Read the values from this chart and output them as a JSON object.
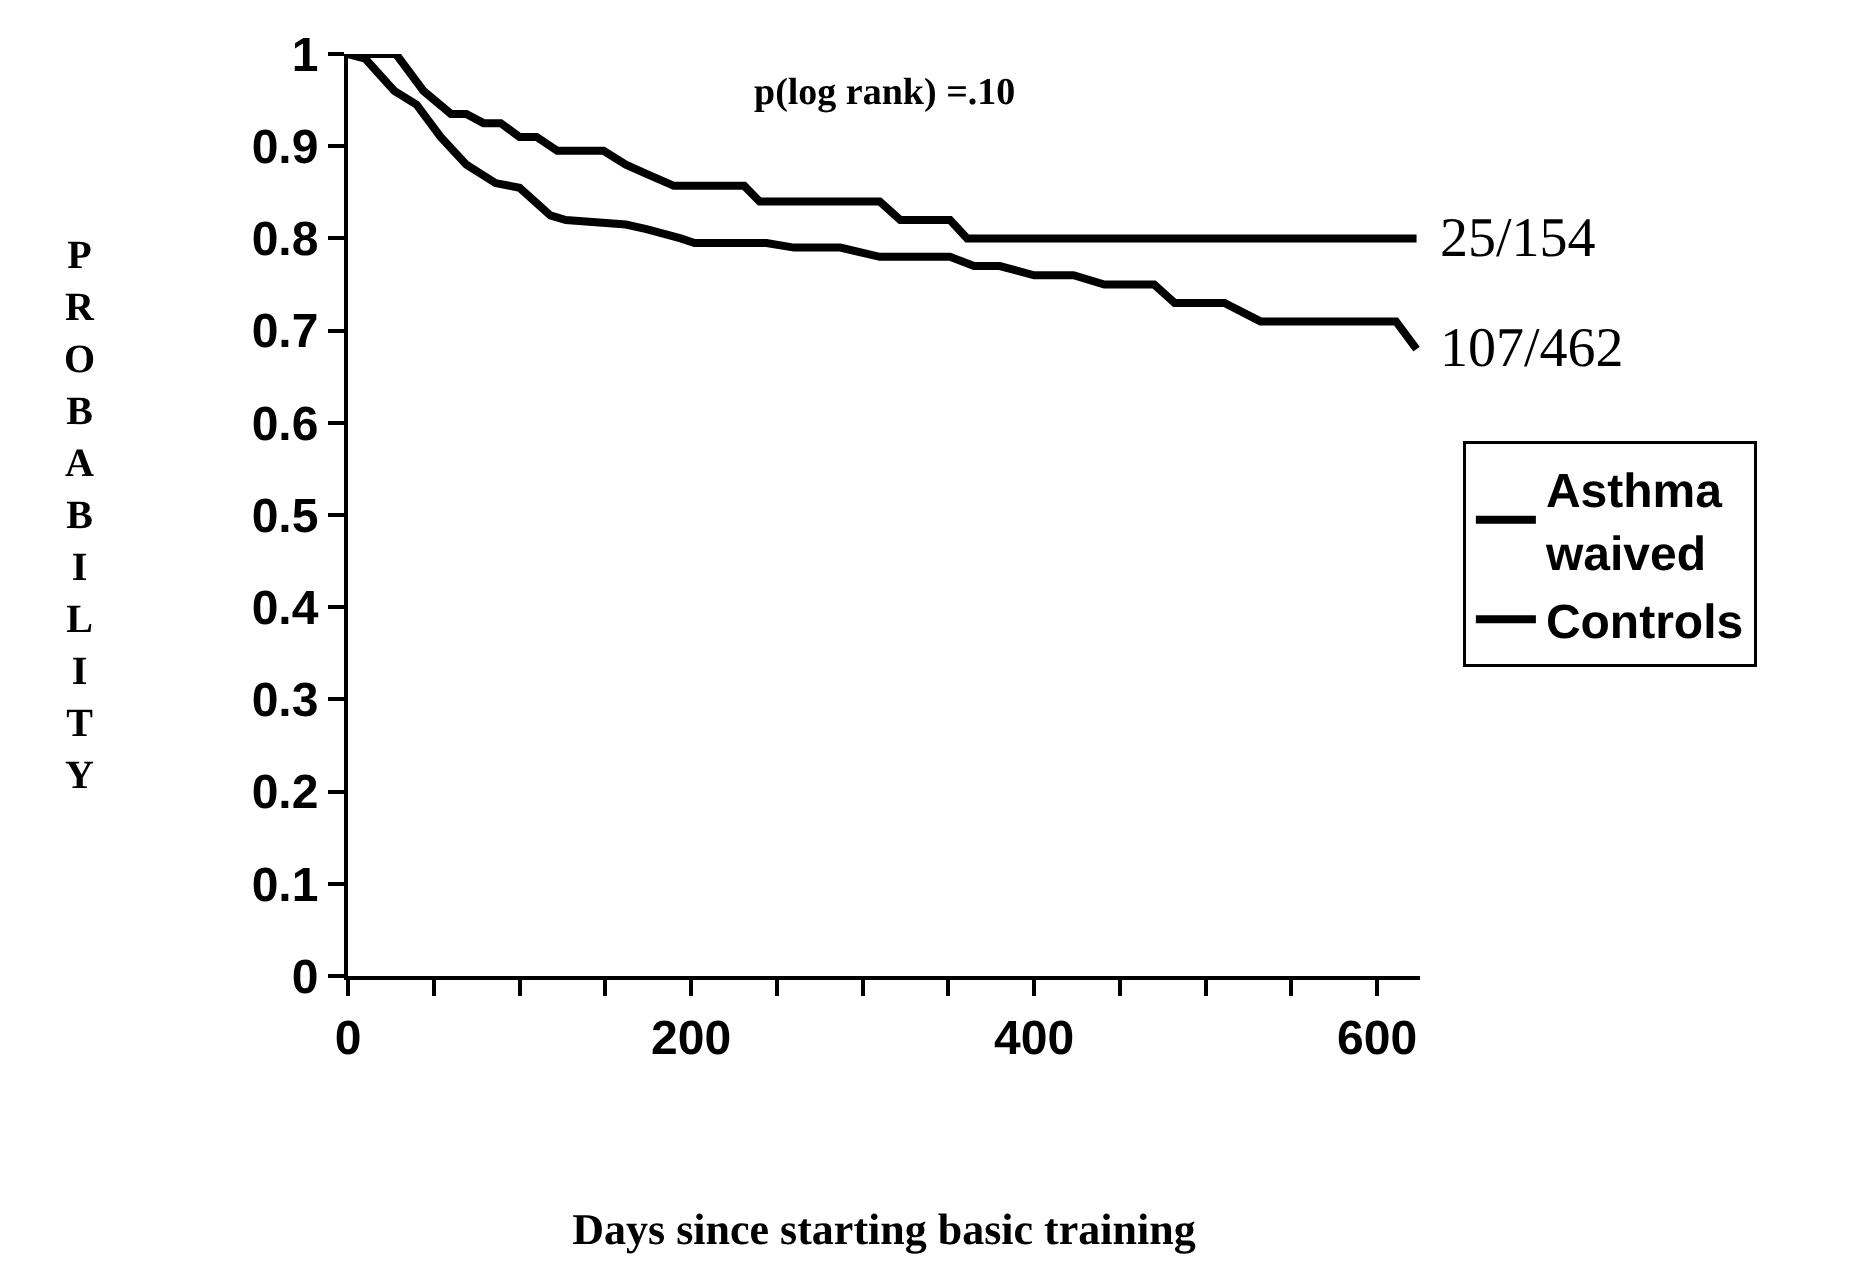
{
  "chart_data": {
    "type": "line",
    "xlabel": "Days since starting basic training",
    "ylabel": "PROBABILITY",
    "series": [
      {
        "name": "Asthma waived",
        "color": "#000000",
        "x": [
          0,
          28,
          44,
          60,
          69,
          79,
          89,
          100,
          110,
          122,
          149,
          162,
          174,
          190,
          231,
          240,
          310,
          322,
          351,
          361,
          623
        ],
        "values": [
          1,
          1,
          0.96,
          0.935,
          0.935,
          0.925,
          0.925,
          0.91,
          0.91,
          0.895,
          0.895,
          0.88,
          0.87,
          0.857,
          0.857,
          0.84,
          0.84,
          0.82,
          0.82,
          0.8,
          0.8
        ]
      },
      {
        "name": "Controls",
        "color": "#000000",
        "x": [
          0,
          10,
          27,
          40,
          54,
          69,
          86,
          100,
          118,
          127,
          162,
          174,
          194,
          202,
          244,
          260,
          287,
          310,
          351,
          365,
          380,
          400,
          423,
          441,
          470,
          482,
          511,
          532,
          611,
          623
        ],
        "values": [
          1,
          0.995,
          0.96,
          0.945,
          0.91,
          0.88,
          0.86,
          0.855,
          0.825,
          0.82,
          0.815,
          0.81,
          0.8,
          0.795,
          0.795,
          0.79,
          0.79,
          0.78,
          0.78,
          0.77,
          0.77,
          0.76,
          0.76,
          0.75,
          0.75,
          0.73,
          0.73,
          0.71,
          0.71,
          0.68
        ]
      }
    ],
    "annotations": [
      "p(log rank) =.10",
      "25/154",
      "107/462"
    ],
    "xlim": [
      0,
      625
    ],
    "ylim": [
      0,
      1
    ],
    "xticks": [
      0,
      {
        "value": 50,
        "label": null
      },
      {
        "value": 100,
        "label": null
      },
      {
        "value": 150,
        "label": null
      },
      200,
      {
        "value": 250,
        "label": null
      },
      {
        "value": 300,
        "label": null
      },
      {
        "value": 350,
        "label": null
      },
      400,
      {
        "value": 450,
        "label": null
      },
      {
        "value": 500,
        "label": null
      },
      {
        "value": 550,
        "label": null
      },
      600
    ],
    "yticks": [
      0,
      0.1,
      0.2,
      0.3,
      0.4,
      0.5,
      0.6,
      0.7,
      0.8,
      0.9,
      1
    ],
    "legend": "right",
    "grid": false,
    "marker": "none",
    "line_style": "solid"
  }
}
